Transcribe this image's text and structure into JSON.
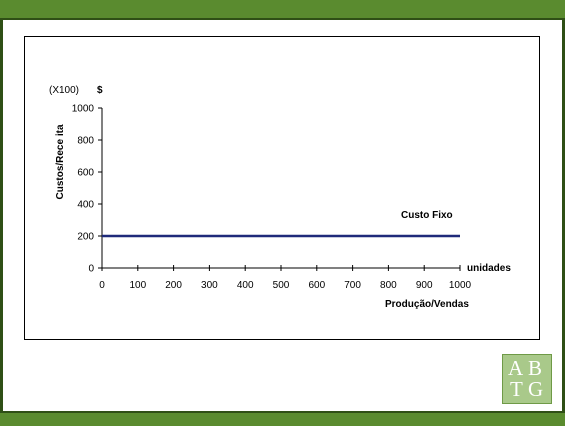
{
  "chart_data": {
    "type": "line",
    "title": "",
    "multiplier_label": "(X100)",
    "currency_label": "$",
    "ylabel": "Custos/Rece ita",
    "xlabel_units": "unidades",
    "xlabel": "Produção/Vendas",
    "xlim": [
      0,
      1000
    ],
    "ylim": [
      0,
      1000
    ],
    "x_ticks": [
      "0",
      "100",
      "200",
      "300",
      "400",
      "500",
      "600",
      "700",
      "800",
      "900",
      "1000"
    ],
    "y_ticks": [
      "0",
      "200",
      "400",
      "600",
      "800",
      "1000"
    ],
    "series": [
      {
        "name": "Custo Fixo",
        "color": "#1f2a7a",
        "x": [
          0,
          1000
        ],
        "y": [
          200,
          200
        ]
      }
    ],
    "grid": false
  },
  "logo": {
    "letters": [
      "A",
      "B",
      "T",
      "G"
    ],
    "color": "#a9c98a"
  },
  "theme": {
    "band_color": "#5a8b2f"
  }
}
